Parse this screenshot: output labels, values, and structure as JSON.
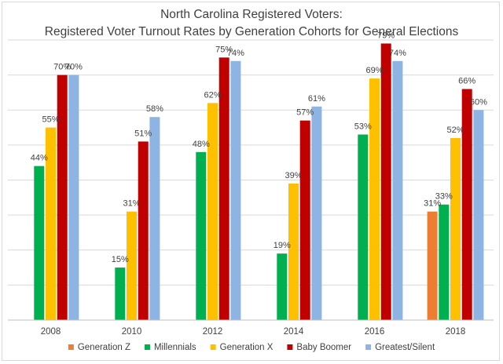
{
  "chart_data": {
    "type": "bar",
    "title_line1": "North Carolina Registered Voters:",
    "title_line2": "Registered Voter Turnout Rates by Generation Cohorts for General Elections",
    "categories": [
      "2008",
      "2010",
      "2012",
      "2014",
      "2016",
      "2018"
    ],
    "series": [
      {
        "name": "Generation Z",
        "color": "#ed7d31",
        "values": [
          null,
          null,
          null,
          null,
          null,
          31
        ],
        "labels": [
          "",
          "",
          "",
          "",
          "",
          "31%"
        ]
      },
      {
        "name": "Millennials",
        "color": "#00b050",
        "values": [
          44,
          15,
          48,
          19,
          53,
          33
        ],
        "labels": [
          "44%",
          "15%",
          "48%",
          "19%",
          "53%",
          "33%"
        ]
      },
      {
        "name": "Generation X",
        "color": "#ffc000",
        "values": [
          55,
          31,
          62,
          39,
          69,
          52
        ],
        "labels": [
          "55%",
          "31%",
          "62%",
          "39%",
          "69%",
          "52%"
        ]
      },
      {
        "name": "Baby Boomer",
        "color": "#c00000",
        "values": [
          70,
          51,
          75,
          57,
          79,
          66
        ],
        "labels": [
          "70%",
          "51%",
          "75%",
          "57%",
          "79%",
          "66%"
        ]
      },
      {
        "name": "Greatest/Silent",
        "color": "#8eb4e3",
        "values": [
          70,
          58,
          74,
          61,
          74,
          60
        ],
        "labels": [
          "70%",
          "58%",
          "74%",
          "61%",
          "74%",
          "60%"
        ]
      }
    ],
    "ylim": [
      0,
      80
    ],
    "gridlines": true,
    "legend": "bottom"
  }
}
